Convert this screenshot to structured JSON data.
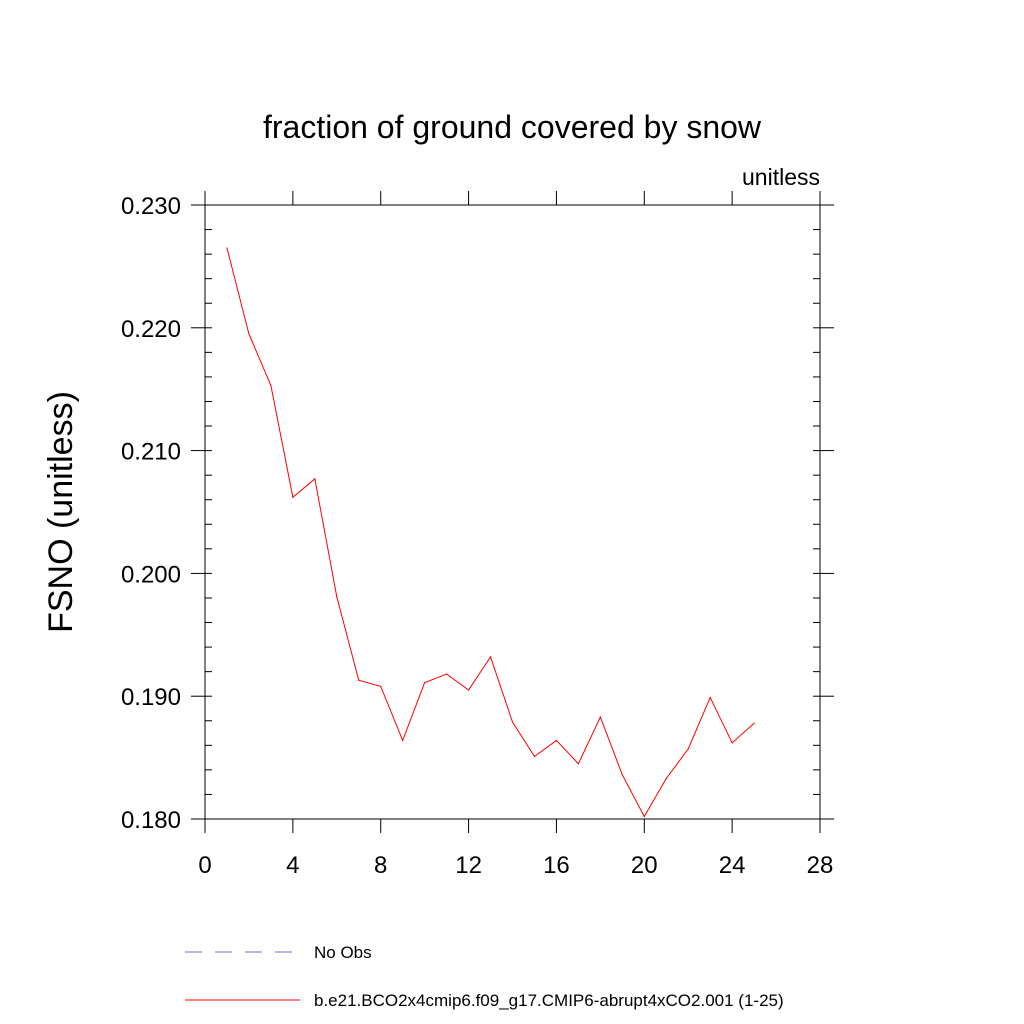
{
  "chart_data": {
    "type": "line",
    "title": "fraction of ground covered by snow",
    "units_label": "unitless",
    "ylabel": "FSNO  (unitless)",
    "xlabel": "",
    "xlim": [
      0,
      28
    ],
    "ylim": [
      0.18,
      0.23
    ],
    "x_ticks": [
      0,
      4,
      8,
      12,
      16,
      20,
      24,
      28
    ],
    "x_tick_labels": [
      "0",
      "4",
      "8",
      "12",
      "16",
      "20",
      "24",
      "28"
    ],
    "y_ticks": [
      0.18,
      0.19,
      0.2,
      0.21,
      0.22,
      0.23
    ],
    "y_tick_labels": [
      "0.180",
      "0.190",
      "0.200",
      "0.210",
      "0.220",
      "0.230"
    ],
    "grid": false,
    "legend_position": "bottom",
    "series": [
      {
        "name": "No Obs",
        "color": "#7b68c8",
        "style": "dashed",
        "x": [],
        "values": []
      },
      {
        "name": "b.e21.BCO2x4cmip6.f09_g17.CMIP6-abrupt4xCO2.001 (1-25)",
        "color": "#ff0000",
        "style": "solid",
        "x": [
          1,
          2,
          3,
          4,
          5,
          6,
          7,
          8,
          9,
          10,
          11,
          12,
          13,
          14,
          15,
          16,
          17,
          18,
          19,
          20,
          21,
          22,
          23,
          24,
          25
        ],
        "values": [
          0.2265,
          0.2195,
          0.2153,
          0.2062,
          0.2077,
          0.1981,
          0.1913,
          0.1908,
          0.1864,
          0.1911,
          0.1918,
          0.1905,
          0.1932,
          0.1879,
          0.1851,
          0.1864,
          0.1845,
          0.1883,
          0.1836,
          0.1802,
          0.1833,
          0.1857,
          0.1899,
          0.1862,
          0.1878
        ]
      }
    ]
  }
}
